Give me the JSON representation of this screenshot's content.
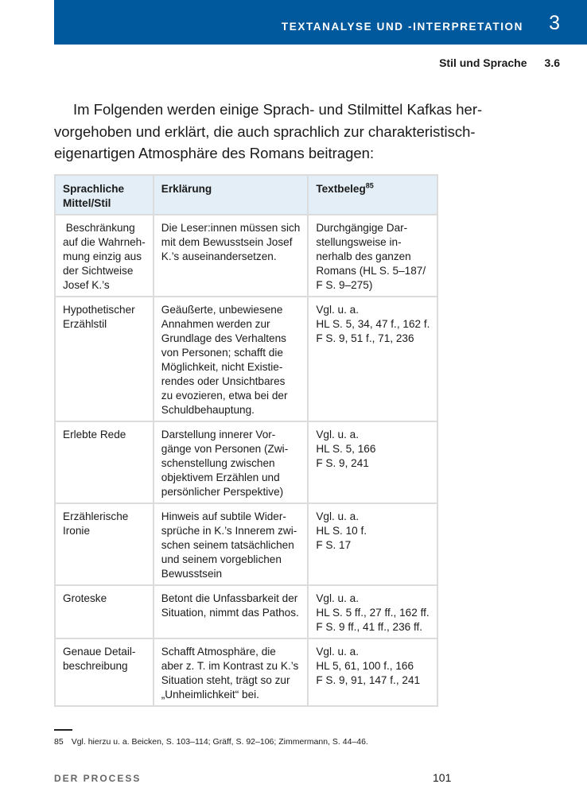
{
  "header": {
    "chapter_title": "TEXTANALYSE UND -INTERPRETATION",
    "chapter_number": "3",
    "section_title": "Stil und Sprache",
    "section_number": "3.6",
    "band_color": "#00599d"
  },
  "intro_lines": [
    "Im Folgenden werden einige Sprach- und Stilmittel Kafkas her-",
    "vorgehoben und erklärt, die auch sprachlich zur charakteristisch-",
    "eigenartigen Atmosphäre des Romans beitragen:"
  ],
  "table": {
    "headers": [
      "Sprachliche\nMittel/Stil",
      "Erklärung",
      "Textbeleg"
    ],
    "header_footnote": "85",
    "rows": [
      [
        " Beschränkung\nauf die Wahrneh-\nmung einzig aus\nder Sichtweise\nJosef K.’s",
        "Die Leser:innen müssen sich\nmit dem Bewusstsein Josef\nK.’s auseinandersetzen.",
        "Durchgängige Dar-\nstellungsweise in-\nnerhalb des ganzen\nRomans (HL S. 5–187/\nF S. 9–275)"
      ],
      [
        "Hypothetischer\nErzählstil",
        "Geäußerte, unbewiesene\nAnnahmen werden zur\nGrundlage des Verhaltens\nvon Personen; schafft die\nMöglichkeit, nicht Existie-\nrendes oder Unsichtbares\nzu evozieren, etwa bei der\nSchuldbehauptung.",
        "Vgl. u. a.\nHL S. 5, 34, 47 f., 162 f.\nF S. 9, 51 f., 71, 236"
      ],
      [
        "Erlebte Rede",
        "Darstellung innerer Vor-\ngänge von Personen (Zwi-\nschenstellung zwischen\nobjektivem Erzählen und\npersönlicher Perspektive)",
        "Vgl. u. a.\nHL S. 5, 166\nF S. 9, 241"
      ],
      [
        "Erzählerische\nIronie",
        "Hinweis auf subtile Wider-\nsprüche in K.’s Innerem zwi-\nschen seinem tatsächlichen\nund seinem vorgeblichen\nBewusstsein",
        "Vgl. u. a.\nHL S. 10 f.\nF S. 17"
      ],
      [
        "Groteske",
        "Betont die Unfassbarkeit der\nSituation, nimmt das Pathos.",
        "Vgl. u. a.\nHL S. 5 ff., 27 ff., 162 ff.\nF S. 9 ff., 41 ff., 236 ff."
      ],
      [
        "Genaue Detail-\nbeschreibung",
        "Schafft Atmosphäre, die\naber z. T. im Kontrast zu K.’s\nSituation steht, trägt so zur\n„Unheimlichkeit“ bei.",
        "Vgl. u. a.\nHL 5, 61, 100 f., 166\nF S. 9, 91, 147 f., 241"
      ]
    ]
  },
  "footnote": {
    "number": "85",
    "text": "Vgl. hierzu u. a. Beicken, S. 103–114; Gräff, S. 92–106; Zimmermann, S. 44–46."
  },
  "footer": {
    "book_title": "DER PROCESS",
    "page_number": "101"
  }
}
